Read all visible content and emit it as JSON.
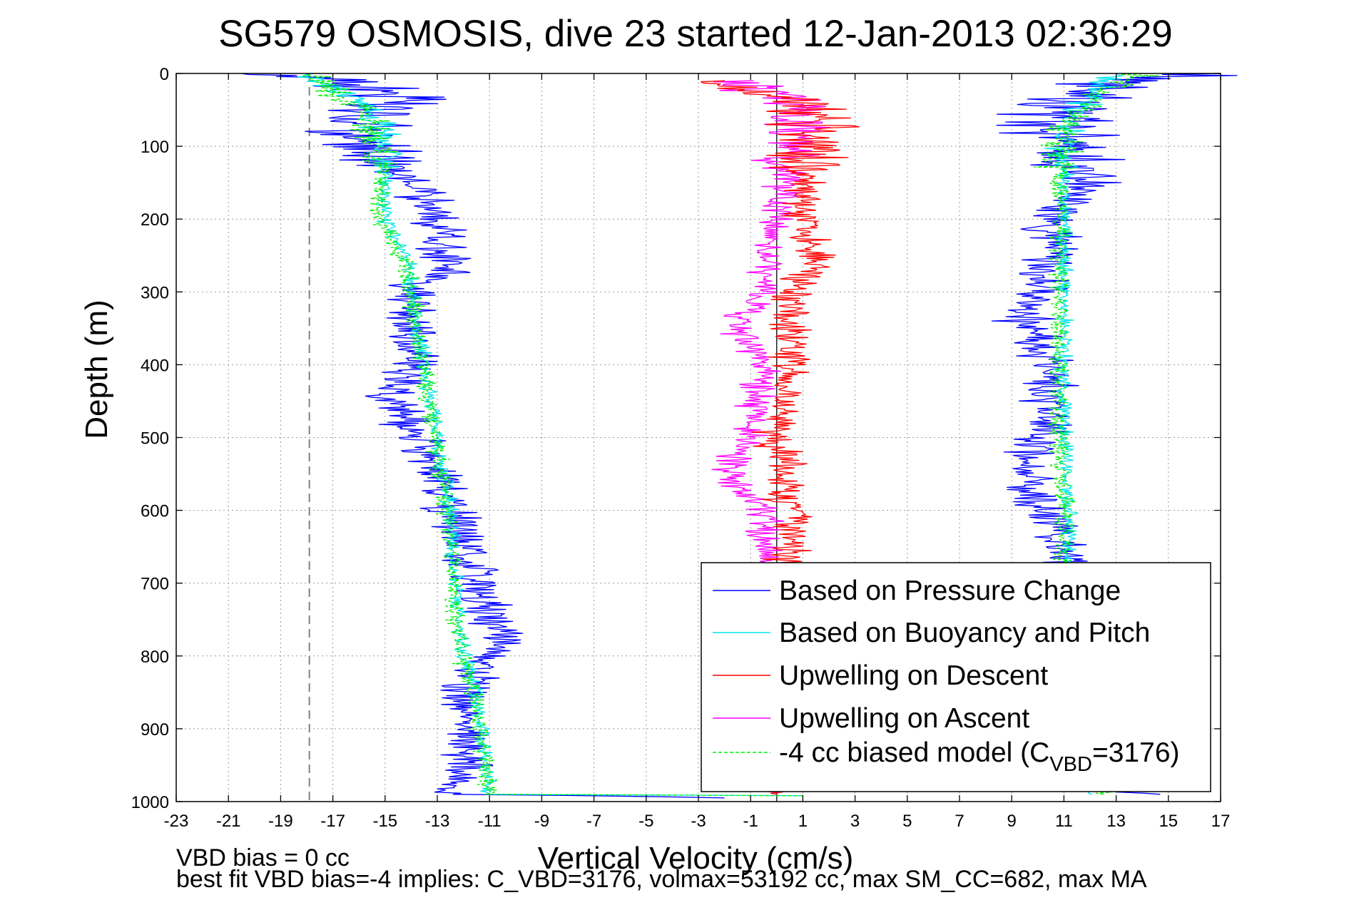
{
  "chart_data": {
    "type": "line",
    "title": "SG579 OSMOSIS, dive 23 started 12-Jan-2013 02:36:29",
    "xlabel": "Vertical Velocity (cm/s)",
    "ylabel": "Depth (m)",
    "xlim": [
      -23,
      17
    ],
    "ylim": [
      1000,
      0
    ],
    "y_reversed": true,
    "x_ticks": [
      -23,
      -21,
      -19,
      -17,
      -15,
      -13,
      -11,
      -9,
      -7,
      -5,
      -3,
      -1,
      1,
      3,
      5,
      7,
      9,
      11,
      13,
      15,
      17
    ],
    "y_ticks": [
      0,
      100,
      200,
      300,
      400,
      500,
      600,
      700,
      800,
      900,
      1000
    ],
    "grid": true,
    "legend_position": "bottom-right",
    "reference_lines": [
      {
        "x": -17.9,
        "style": "dashed",
        "color": "#808080"
      },
      {
        "x": 0,
        "style": "solid",
        "color": "#000000"
      }
    ],
    "series": [
      {
        "name": "Based on Pressure Change",
        "color": "#0000ff",
        "style": "solid",
        "segments": [
          {
            "noise": 1.6,
            "points": [
              [
                0,
                -20
              ],
              [
                10,
                -16
              ],
              [
                40,
                -15
              ],
              [
                90,
                -16.5
              ],
              [
                110,
                -15
              ],
              [
                150,
                -14
              ],
              [
                200,
                -13
              ],
              [
                260,
                -12.5
              ],
              [
                300,
                -14
              ],
              [
                400,
                -14
              ],
              [
                440,
                -14.8
              ],
              [
                500,
                -13.8
              ],
              [
                600,
                -12.5
              ],
              [
                700,
                -11.5
              ],
              [
                790,
                -10.5
              ],
              [
                800,
                -11
              ],
              [
                850,
                -12
              ],
              [
                990,
                -12
              ],
              [
                995,
                -2
              ]
            ]
          },
          {
            "noise": 1.6,
            "points": [
              [
                990,
                14
              ],
              [
                970,
                11
              ],
              [
                900,
                11
              ],
              [
                800,
                11
              ],
              [
                700,
                11
              ],
              [
                620,
                10.8
              ],
              [
                570,
                9.5
              ],
              [
                520,
                9.8
              ],
              [
                480,
                10.5
              ],
              [
                400,
                10.5
              ],
              [
                340,
                9.5
              ],
              [
                300,
                10
              ],
              [
                250,
                10.5
              ],
              [
                200,
                10.5
              ],
              [
                150,
                12
              ],
              [
                100,
                11
              ],
              [
                50,
                11
              ],
              [
                10,
                13
              ],
              [
                0,
                17
              ]
            ]
          }
        ]
      },
      {
        "name": "Based on Buoyancy and Pitch",
        "color": "#00e5ee",
        "style": "solid",
        "segments": [
          {
            "noise": 0.5,
            "points": [
              [
                0,
                -18
              ],
              [
                50,
                -15.5
              ],
              [
                100,
                -15
              ],
              [
                200,
                -15
              ],
              [
                260,
                -14
              ],
              [
                300,
                -14
              ],
              [
                400,
                -13.5
              ],
              [
                500,
                -13
              ],
              [
                600,
                -12.5
              ],
              [
                700,
                -12.3
              ],
              [
                800,
                -12
              ],
              [
                850,
                -11.5
              ],
              [
                990,
                -11
              ],
              [
                992,
                1
              ]
            ]
          },
          {
            "noise": 0.5,
            "points": [
              [
                990,
                12
              ],
              [
                900,
                11
              ],
              [
                800,
                11
              ],
              [
                700,
                11.2
              ],
              [
                600,
                11.2
              ],
              [
                500,
                11
              ],
              [
                400,
                11
              ],
              [
                300,
                11
              ],
              [
                200,
                11
              ],
              [
                100,
                11
              ],
              [
                50,
                11.5
              ],
              [
                0,
                13
              ]
            ]
          }
        ]
      },
      {
        "name": "Upwelling on Descent",
        "color": "#ff0000",
        "style": "solid",
        "segments": [
          {
            "noise": 1.3,
            "points": [
              [
                10,
                -3
              ],
              [
                40,
                1
              ],
              [
                90,
                1.5
              ],
              [
                150,
                1
              ],
              [
                200,
                1
              ],
              [
                260,
                1.5
              ],
              [
                300,
                0.5
              ],
              [
                400,
                0.5
              ],
              [
                500,
                0
              ],
              [
                600,
                0.5
              ],
              [
                700,
                0.3
              ],
              [
                800,
                0.3
              ],
              [
                900,
                0.3
              ],
              [
                990,
                0
              ]
            ]
          }
        ]
      },
      {
        "name": "Upwelling on Ascent",
        "color": "#ff00ff",
        "style": "solid",
        "segments": [
          {
            "noise": 1.1,
            "points": [
              [
                10,
                -1
              ],
              [
                50,
                1
              ],
              [
                100,
                0.5
              ],
              [
                200,
                0
              ],
              [
                300,
                -0.5
              ],
              [
                350,
                -1.5
              ],
              [
                400,
                -0.5
              ],
              [
                500,
                -1
              ],
              [
                550,
                -2
              ],
              [
                600,
                -0.5
              ],
              [
                700,
                -0.5
              ],
              [
                800,
                -0.3
              ],
              [
                900,
                -0.3
              ],
              [
                990,
                0
              ]
            ]
          }
        ]
      },
      {
        "name": "-4 cc biased model (C",
        "sub": "VBD",
        "suffix": "=3176)",
        "color": "#00ee00",
        "style": "dashed",
        "segments": [
          {
            "noise": 0.6,
            "points": [
              [
                0,
                -18
              ],
              [
                50,
                -15.8
              ],
              [
                100,
                -15.2
              ],
              [
                200,
                -15.2
              ],
              [
                260,
                -14.2
              ],
              [
                300,
                -14
              ],
              [
                400,
                -13.6
              ],
              [
                500,
                -13.1
              ],
              [
                600,
                -12.6
              ],
              [
                700,
                -12.4
              ],
              [
                800,
                -12.1
              ],
              [
                850,
                -11.6
              ],
              [
                990,
                -11
              ],
              [
                992,
                1
              ]
            ]
          },
          {
            "noise": 0.6,
            "points": [
              [
                990,
                12.5
              ],
              [
                900,
                10.8
              ],
              [
                800,
                10.8
              ],
              [
                700,
                11
              ],
              [
                600,
                11
              ],
              [
                500,
                10.8
              ],
              [
                400,
                10.8
              ],
              [
                300,
                10.8
              ],
              [
                200,
                10.8
              ],
              [
                100,
                10.8
              ],
              [
                50,
                11.5
              ],
              [
                0,
                14
              ]
            ]
          }
        ]
      }
    ]
  },
  "footer": {
    "line1": "VBD bias = 0 cc",
    "line2": "best fit VBD bias=-4 implies: C_VBD=3176, volmax=53192 cc, max SM_CC=682, max MA"
  }
}
